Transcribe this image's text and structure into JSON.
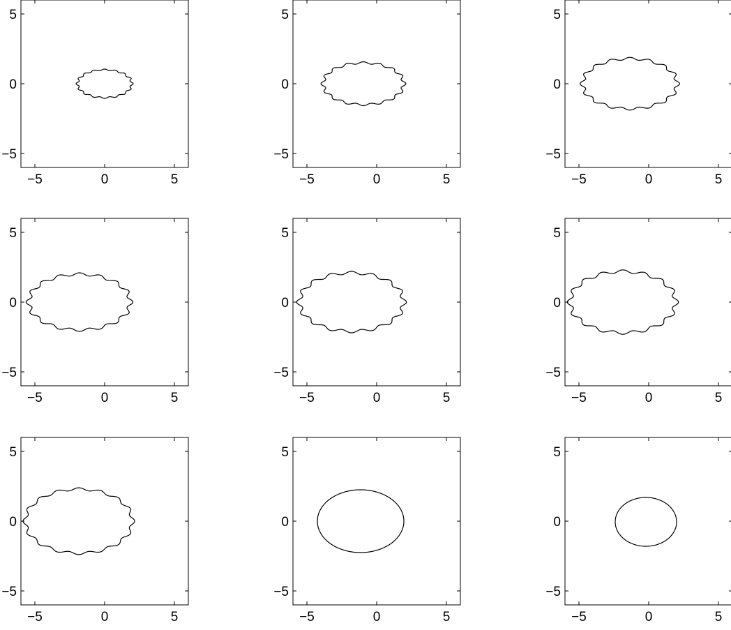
{
  "chart_data": [
    {
      "type": "line",
      "title": "",
      "xlabel": "",
      "ylabel": "",
      "xlim": [
        -6,
        6
      ],
      "ylim": [
        -6,
        6
      ],
      "grid": false,
      "x_ticks": [
        -5,
        0,
        5
      ],
      "y_ticks": [
        -5,
        0,
        5
      ],
      "x_tick_labels": [
        "−5",
        "0",
        "5"
      ],
      "y_tick_labels": [
        "−5",
        "0",
        "5"
      ],
      "series": [
        {
          "center": [
            0.0,
            0.0
          ],
          "semi_axes": [
            1.95,
            1.0
          ],
          "waviness": 0.05,
          "stroke_color": "#000000"
        }
      ]
    },
    {
      "type": "line",
      "title": "",
      "xlabel": "",
      "ylabel": "",
      "xlim": [
        -6,
        6
      ],
      "ylim": [
        -6,
        6
      ],
      "grid": false,
      "x_ticks": [
        -5,
        0,
        5
      ],
      "y_ticks": [
        -5,
        0,
        5
      ],
      "x_tick_labels": [
        "−5",
        "0",
        "5"
      ],
      "y_tick_labels": [
        "−5",
        "0",
        "5"
      ],
      "series": [
        {
          "center": [
            -0.95,
            0.0
          ],
          "semi_axes": [
            2.9,
            1.5
          ],
          "waviness": 0.05,
          "stroke_color": "#000000"
        }
      ]
    },
    {
      "type": "line",
      "title": "",
      "xlabel": "",
      "ylabel": "",
      "xlim": [
        -6,
        6
      ],
      "ylim": [
        -6,
        6
      ],
      "grid": false,
      "x_ticks": [
        -5,
        0,
        5
      ],
      "y_ticks": [
        -5,
        0,
        5
      ],
      "x_tick_labels": [
        "−5",
        "0",
        "5"
      ],
      "y_tick_labels": [
        "−5",
        "0",
        "5"
      ],
      "series": [
        {
          "center": [
            -1.35,
            0.0
          ],
          "semi_axes": [
            3.4,
            1.8
          ],
          "waviness": 0.05,
          "stroke_color": "#000000"
        }
      ]
    },
    {
      "type": "line",
      "title": "",
      "xlabel": "",
      "ylabel": "",
      "xlim": [
        -6,
        6
      ],
      "ylim": [
        -6,
        6
      ],
      "grid": false,
      "x_ticks": [
        -5,
        0,
        5
      ],
      "y_ticks": [
        -5,
        0,
        5
      ],
      "x_tick_labels": [
        "−5",
        "0",
        "5"
      ],
      "y_tick_labels": [
        "−5",
        "0",
        "5"
      ],
      "series": [
        {
          "center": [
            -1.8,
            0.0
          ],
          "semi_axes": [
            3.65,
            2.0
          ],
          "waviness": 0.05,
          "stroke_color": "#000000"
        }
      ]
    },
    {
      "type": "line",
      "title": "",
      "xlabel": "",
      "ylabel": "",
      "xlim": [
        -6,
        6
      ],
      "ylim": [
        -6,
        6
      ],
      "grid": false,
      "x_ticks": [
        -5,
        0,
        5
      ],
      "y_ticks": [
        -5,
        0,
        5
      ],
      "x_tick_labels": [
        "−5",
        "0",
        "5"
      ],
      "y_tick_labels": [
        "−5",
        "0",
        "5"
      ],
      "series": [
        {
          "center": [
            -1.8,
            0.0
          ],
          "semi_axes": [
            3.75,
            2.1
          ],
          "waviness": 0.05,
          "stroke_color": "#000000"
        }
      ]
    },
    {
      "type": "line",
      "title": "",
      "xlabel": "",
      "ylabel": "",
      "xlim": [
        -6,
        6
      ],
      "ylim": [
        -6,
        6
      ],
      "grid": false,
      "x_ticks": [
        -5,
        0,
        5
      ],
      "y_ticks": [
        -5,
        0,
        5
      ],
      "x_tick_labels": [
        "−5",
        "0",
        "5"
      ],
      "y_tick_labels": [
        "−5",
        "0",
        "5"
      ],
      "series": [
        {
          "center": [
            -1.85,
            0.0
          ],
          "semi_axes": [
            3.8,
            2.2
          ],
          "waviness": 0.05,
          "stroke_color": "#000000"
        }
      ]
    },
    {
      "type": "line",
      "title": "",
      "xlabel": "",
      "ylabel": "",
      "xlim": [
        -6,
        6
      ],
      "ylim": [
        -6,
        6
      ],
      "grid": false,
      "x_ticks": [
        -5,
        0,
        5
      ],
      "y_ticks": [
        -5,
        0,
        5
      ],
      "x_tick_labels": [
        "−5",
        "0",
        "5"
      ],
      "y_tick_labels": [
        "−5",
        "0",
        "5"
      ],
      "series": [
        {
          "center": [
            -1.85,
            0.0
          ],
          "semi_axes": [
            3.85,
            2.3
          ],
          "waviness": 0.04,
          "stroke_color": "#000000"
        }
      ]
    },
    {
      "type": "line",
      "title": "",
      "xlabel": "",
      "ylabel": "",
      "xlim": [
        -6,
        6
      ],
      "ylim": [
        -6,
        6
      ],
      "grid": false,
      "x_ticks": [
        -5,
        0,
        5
      ],
      "y_ticks": [
        -5,
        0,
        5
      ],
      "x_tick_labels": [
        "−5",
        "0",
        "5"
      ],
      "y_tick_labels": [
        "−5",
        "0",
        "5"
      ],
      "series": [
        {
          "center": [
            -1.15,
            0.0
          ],
          "semi_axes": [
            3.1,
            2.25
          ],
          "waviness": 0.0,
          "stroke_color": "#000000"
        }
      ]
    },
    {
      "type": "line",
      "title": "",
      "xlabel": "",
      "ylabel": "",
      "xlim": [
        -6,
        6
      ],
      "ylim": [
        -6,
        6
      ],
      "grid": false,
      "x_ticks": [
        -5,
        0,
        5
      ],
      "y_ticks": [
        -5,
        0,
        5
      ],
      "x_tick_labels": [
        "−5",
        "0",
        "5"
      ],
      "y_tick_labels": [
        "−5",
        "0",
        "5"
      ],
      "series": [
        {
          "center": [
            -0.2,
            -0.05
          ],
          "semi_axes": [
            2.2,
            1.75
          ],
          "waviness": 0.0,
          "stroke_color": "#000000"
        }
      ]
    }
  ]
}
